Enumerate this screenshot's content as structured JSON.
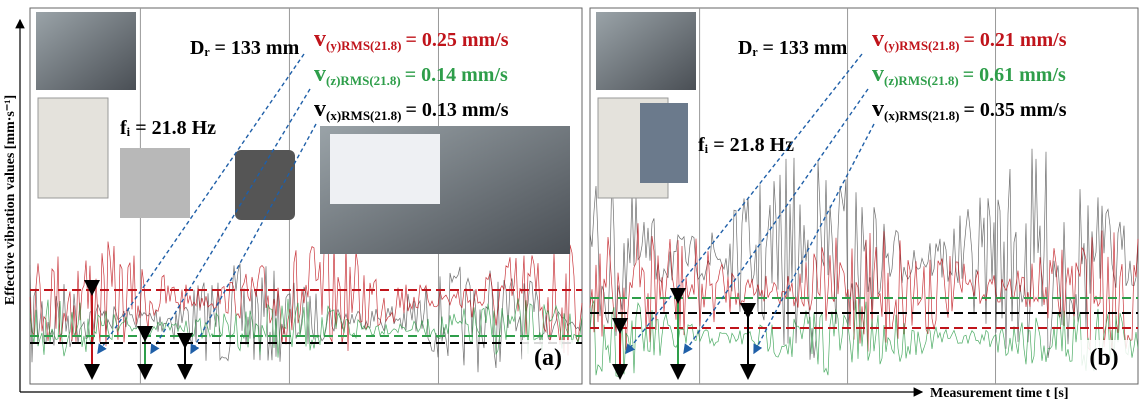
{
  "axes": {
    "y_label": "Effective vibration values [mm·s⁻¹]",
    "x_label": "Measurement time t [s]"
  },
  "panels": [
    {
      "label": "(a)",
      "diameter": "Dᵣ = 133 mm",
      "frequency": "fᵢ = 21.8 Hz",
      "measurements": [
        {
          "symbol": "v",
          "subscript": "(y)RMS(21.8)",
          "value": "= 0.25 mm/s"
        },
        {
          "symbol": "v",
          "subscript": "(z)RMS(21.8)",
          "value": "= 0.14 mm/s"
        },
        {
          "symbol": "v",
          "subscript": "(x)RMS(21.8)",
          "value": "= 0.13 mm/s"
        }
      ]
    },
    {
      "label": "(b)",
      "diameter": "Dᵣ = 133 mm",
      "frequency": "fᵢ = 21.8 Hz",
      "measurements": [
        {
          "symbol": "v",
          "subscript": "(y)RMS(21.8)",
          "value": "= 0.21 mm/s"
        },
        {
          "symbol": "v",
          "subscript": "(z)RMS(21.8)",
          "value": "= 0.61 mm/s"
        },
        {
          "symbol": "v",
          "subscript": "(x)RMS(21.8)",
          "value": "= 0.35 mm/s"
        }
      ]
    }
  ]
}
